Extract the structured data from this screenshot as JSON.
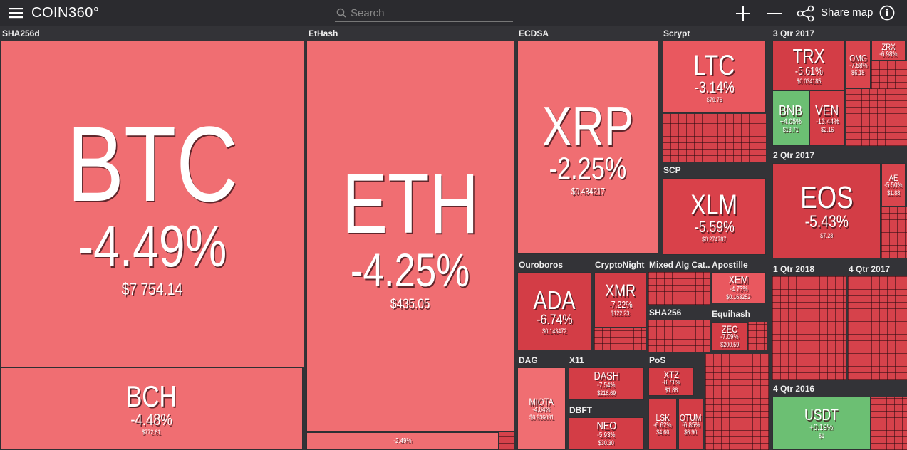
{
  "header": {
    "brand": "COIN360°",
    "search_placeholder": "Search",
    "share_label": "Share map"
  },
  "groups": [
    {
      "name": "SHA256d",
      "tiles": [
        {
          "symbol": "BTC",
          "change": "-4.49%",
          "price": "$7 754.14"
        },
        {
          "symbol": "BCH",
          "change": "-4.48%",
          "price": "$772.61"
        }
      ]
    },
    {
      "name": "EtHash",
      "tiles": [
        {
          "symbol": "ETH",
          "change": "-4.25%",
          "price": "$435.05"
        },
        {
          "change": "-2.49%"
        }
      ]
    },
    {
      "name": "ECDSA",
      "tiles": [
        {
          "symbol": "XRP",
          "change": "-2.25%",
          "price": "$0.434217"
        }
      ]
    },
    {
      "name": "Scrypt",
      "tiles": [
        {
          "symbol": "LTC",
          "change": "-3.14%",
          "price": "$79.76"
        }
      ]
    },
    {
      "name": "SCP",
      "tiles": [
        {
          "symbol": "XLM",
          "change": "-5.59%",
          "price": "$0.274787"
        }
      ]
    },
    {
      "name": "3 Qtr 2017",
      "tiles": [
        {
          "symbol": "TRX",
          "change": "-5.61%",
          "price": "$0.034185"
        },
        {
          "symbol": "BNB",
          "change": "+4.05%",
          "price": "$13.71"
        },
        {
          "symbol": "VEN",
          "change": "-13.44%",
          "price": "$2.16"
        },
        {
          "symbol": "OMG",
          "change": "-7.58%",
          "price": "$6.18"
        },
        {
          "symbol": "ZRX",
          "change": "-6.98%"
        }
      ]
    },
    {
      "name": "2 Qtr 2017",
      "tiles": [
        {
          "symbol": "EOS",
          "change": "-5.43%",
          "price": "$7.28"
        },
        {
          "symbol": "AE",
          "change": "-5.50%",
          "price": "$1.88"
        }
      ]
    },
    {
      "name": "Ouroboros",
      "tiles": [
        {
          "symbol": "ADA",
          "change": "-6.74%",
          "price": "$0.143472"
        }
      ]
    },
    {
      "name": "CryptoNight",
      "tiles": [
        {
          "symbol": "XMR",
          "change": "-7.22%",
          "price": "$122.23"
        }
      ]
    },
    {
      "name": "Apostille",
      "tiles": [
        {
          "symbol": "XEM",
          "change": "-4.73%",
          "price": "$0.163252"
        }
      ]
    },
    {
      "name": "Equihash",
      "tiles": [
        {
          "symbol": "ZEC",
          "change": "-7.09%",
          "price": "$200.59"
        }
      ]
    },
    {
      "name": "DAG",
      "tiles": [
        {
          "symbol": "MIOTA",
          "change": "-4.04%",
          "price": "$0.936091"
        }
      ]
    },
    {
      "name": "X11",
      "tiles": [
        {
          "symbol": "DASH",
          "change": "-7.54%",
          "price": "$216.69"
        }
      ]
    },
    {
      "name": "DBFT",
      "tiles": [
        {
          "symbol": "NEO",
          "change": "-5.93%",
          "price": "$30.30"
        }
      ]
    },
    {
      "name": "PoS",
      "tiles": [
        {
          "symbol": "XTZ",
          "change": "-8.71%",
          "price": "$1.88"
        },
        {
          "symbol": "LSK",
          "change": "-6.62%",
          "price": "$4.60"
        },
        {
          "symbol": "QTUM",
          "change": "-6.85%",
          "price": "$6.90"
        }
      ]
    },
    {
      "name": "Mixed Alg Cat...",
      "tiles": []
    },
    {
      "name": "SHA256",
      "tiles": []
    },
    {
      "name": "1 Qtr 2018",
      "tiles": []
    },
    {
      "name": "4 Qtr 2017",
      "tiles": []
    },
    {
      "name": "4 Qtr 2016",
      "tiles": [
        {
          "symbol": "USDT",
          "change": "+0.19%",
          "price": "$1"
        }
      ]
    }
  ]
}
